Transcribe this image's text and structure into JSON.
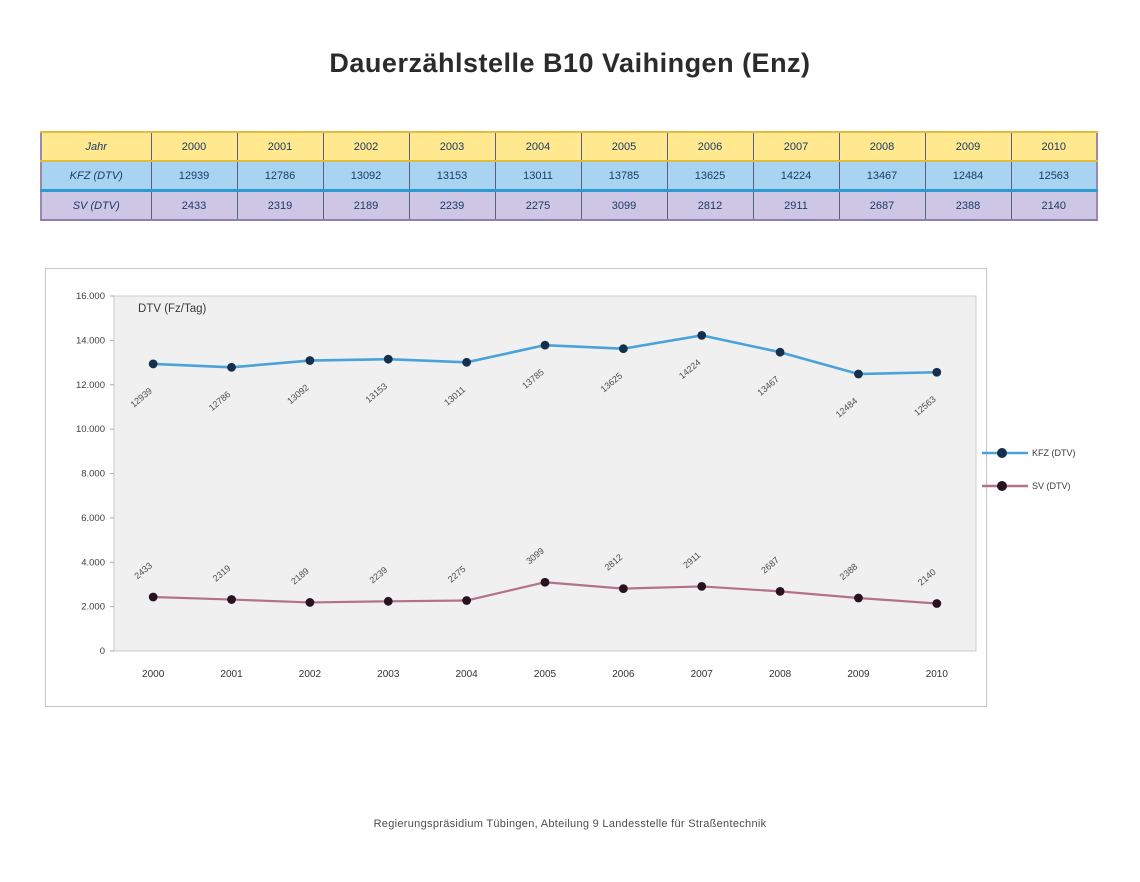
{
  "title": "Dauerzählstelle  B10 Vaihingen (Enz)",
  "footer": "Regierungspräsidium Tübingen, Abteilung 9 Landesstelle für Straßentechnik",
  "table": {
    "header_label": "Jahr",
    "years": [
      "2000",
      "2001",
      "2002",
      "2003",
      "2004",
      "2005",
      "2006",
      "2007",
      "2008",
      "2009",
      "2010"
    ],
    "rows": [
      {
        "label": "KFZ (DTV)",
        "values": [
          12939,
          12786,
          13092,
          13153,
          13011,
          13785,
          13625,
          14224,
          13467,
          12484,
          12563
        ]
      },
      {
        "label": "SV (DTV)",
        "values": [
          2433,
          2319,
          2189,
          2239,
          2275,
          3099,
          2812,
          2911,
          2687,
          2388,
          2140
        ]
      }
    ]
  },
  "chart_data": {
    "type": "line",
    "title": "DTV (Fz/Tag)",
    "categories": [
      "2000",
      "2001",
      "2002",
      "2003",
      "2004",
      "2005",
      "2006",
      "2007",
      "2008",
      "2009",
      "2010"
    ],
    "series": [
      {
        "name": "KFZ (DTV)",
        "values": [
          12939,
          12786,
          13092,
          13153,
          13011,
          13785,
          13625,
          14224,
          13467,
          12484,
          12563
        ],
        "color": "#4aa3d8",
        "marker_color": "#14304d",
        "line_width": 2.6,
        "label_position": "below"
      },
      {
        "name": "SV (DTV)",
        "values": [
          2433,
          2319,
          2189,
          2239,
          2275,
          3099,
          2812,
          2911,
          2687,
          2388,
          2140
        ],
        "color": "#b2728c",
        "marker_color": "#27121d",
        "line_width": 2.2,
        "label_position": "above"
      }
    ],
    "xlabel": "",
    "ylabel": "",
    "ylim": [
      0,
      16000
    ],
    "ytick_step": 2000,
    "ytick_labels": [
      "0",
      "2.000",
      "4.000",
      "6.000",
      "8.000",
      "10.000",
      "12.000",
      "14.000",
      "16.000"
    ],
    "grid": false,
    "legend_position": "right",
    "data_labels": true,
    "plot_bg": "#f0f0f0",
    "plot_border": "#cccccc",
    "tick_text_color": "#3d3d3d",
    "data_label_color": "#4c4c4c"
  }
}
